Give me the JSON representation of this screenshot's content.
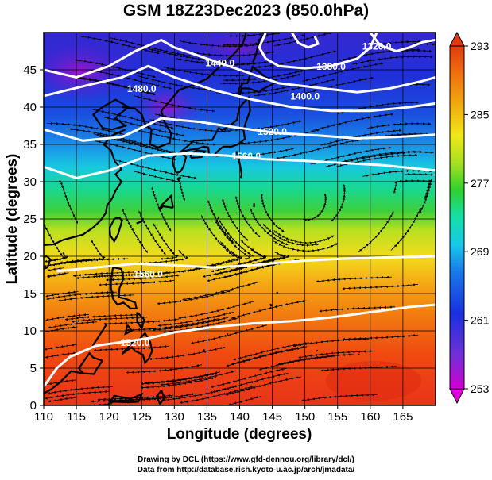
{
  "title": "GSM 18Z23Dec2023 (850.0hPa)",
  "map": {
    "xlabel": "Longitude (degrees)",
    "ylabel": "Latitude  (degrees)",
    "x_range": [
      110,
      170
    ],
    "y_range": [
      0,
      50
    ],
    "x_ticks": [
      110,
      115,
      120,
      125,
      130,
      135,
      140,
      145,
      150,
      155,
      160,
      165
    ],
    "y_ticks": [
      0,
      5,
      10,
      15,
      20,
      25,
      30,
      35,
      40,
      45
    ],
    "grid": true
  },
  "colorbar": {
    "ticks": [
      253,
      261,
      269,
      277,
      285,
      293
    ],
    "range": [
      253,
      293
    ],
    "colors": [
      "#d000d0",
      "#5a2ad8",
      "#1830e0",
      "#1a6ee8",
      "#18c0e8",
      "#14e0a0",
      "#30d030",
      "#a0e020",
      "#f0e818",
      "#f0b010",
      "#f07010",
      "#e03a10"
    ]
  },
  "contours": [
    {
      "label": "1320.0"
    },
    {
      "label": "1380.0"
    },
    {
      "label": "1440.0"
    },
    {
      "label": "1480.0"
    },
    {
      "label": "1400.0"
    },
    {
      "label": "1520.0"
    },
    {
      "label": "1560.0"
    },
    {
      "label": "1560.0"
    },
    {
      "label": "1520.0"
    }
  ],
  "credits": {
    "line1": "Drawing by DCL (https://www.gfd-dennou.org/library/dcl/)",
    "line2": "Data from http://database.rish.kyoto-u.ac.jp/arch/jmadata/"
  }
}
